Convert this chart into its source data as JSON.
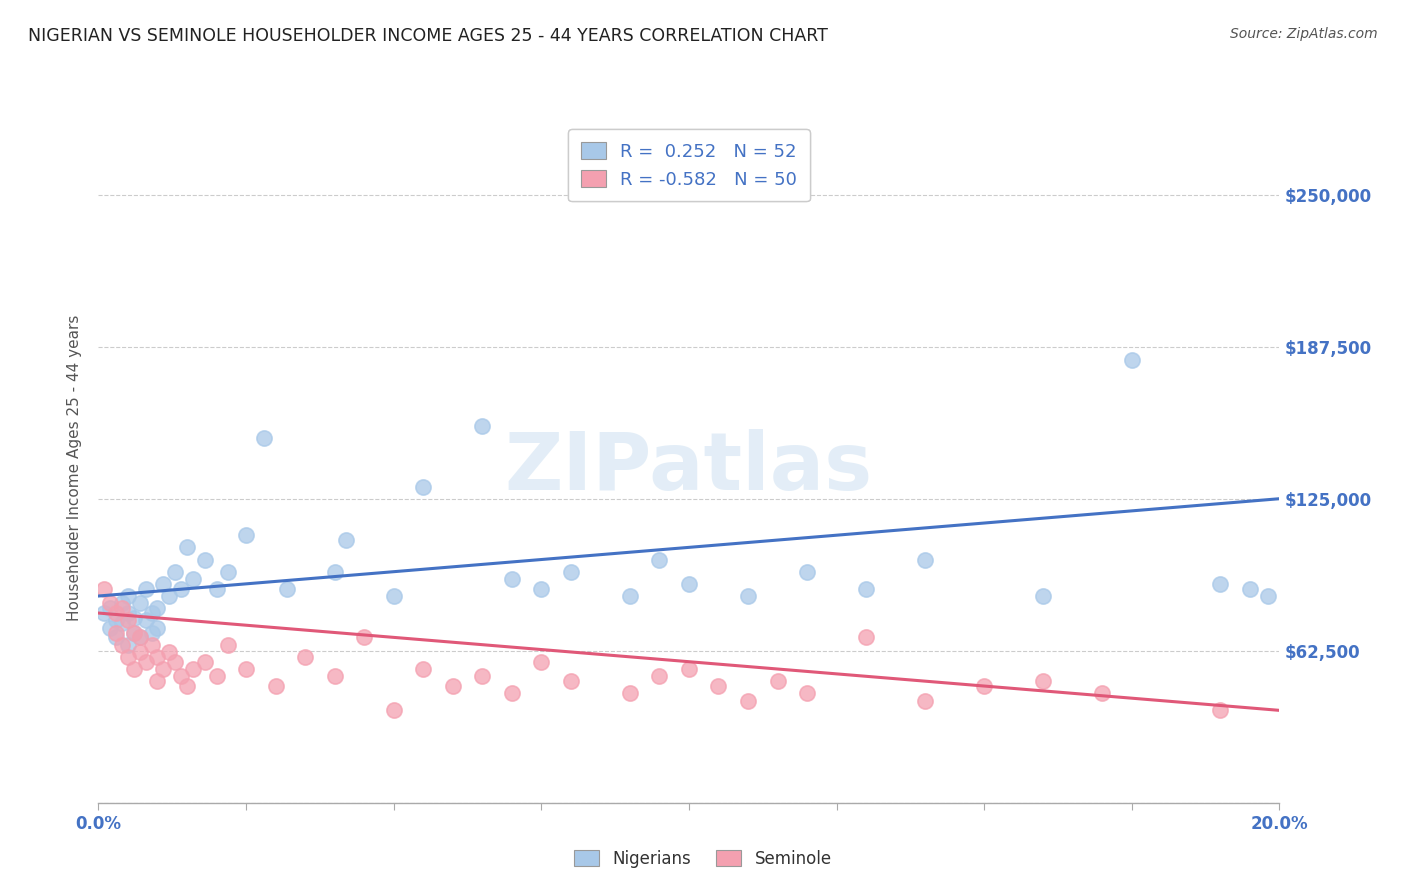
{
  "title": "NIGERIAN VS SEMINOLE HOUSEHOLDER INCOME AGES 25 - 44 YEARS CORRELATION CHART",
  "source": "Source: ZipAtlas.com",
  "ylabel": "Householder Income Ages 25 - 44 years",
  "xlim": [
    0.0,
    0.2
  ],
  "ylim": [
    0,
    275000
  ],
  "yticks": [
    0,
    62500,
    125000,
    187500,
    250000
  ],
  "xticks": [
    0.0,
    0.025,
    0.05,
    0.075,
    0.1,
    0.125,
    0.15,
    0.175,
    0.2
  ],
  "blue_color": "#a8c8e8",
  "pink_color": "#f4a0b0",
  "blue_line_color": "#4472c4",
  "pink_line_color": "#e05878",
  "legend_blue_label": "R =  0.252   N = 52",
  "legend_pink_label": "R = -0.582   N = 50",
  "legend_bottom_blue": "Nigerians",
  "legend_bottom_pink": "Seminole",
  "axis_label_color": "#4472c4",
  "blue_trend_x0": 0.0,
  "blue_trend_x1": 0.2,
  "blue_trend_y0": 85000,
  "blue_trend_y1": 125000,
  "pink_trend_x0": 0.0,
  "pink_trend_x1": 0.2,
  "pink_trend_y0": 78000,
  "pink_trend_y1": 38000,
  "blue_x": [
    0.001,
    0.002,
    0.002,
    0.003,
    0.003,
    0.004,
    0.004,
    0.005,
    0.005,
    0.005,
    0.006,
    0.006,
    0.007,
    0.007,
    0.008,
    0.008,
    0.009,
    0.009,
    0.01,
    0.01,
    0.011,
    0.012,
    0.013,
    0.014,
    0.015,
    0.016,
    0.018,
    0.02,
    0.022,
    0.025,
    0.028,
    0.032,
    0.04,
    0.042,
    0.05,
    0.055,
    0.065,
    0.07,
    0.075,
    0.08,
    0.09,
    0.095,
    0.1,
    0.11,
    0.12,
    0.13,
    0.14,
    0.16,
    0.175,
    0.19,
    0.195,
    0.198
  ],
  "blue_y": [
    78000,
    72000,
    80000,
    75000,
    68000,
    82000,
    74000,
    78000,
    65000,
    85000,
    70000,
    76000,
    82000,
    68000,
    75000,
    88000,
    70000,
    78000,
    72000,
    80000,
    90000,
    85000,
    95000,
    88000,
    105000,
    92000,
    100000,
    88000,
    95000,
    110000,
    150000,
    88000,
    95000,
    108000,
    85000,
    130000,
    155000,
    92000,
    88000,
    95000,
    85000,
    100000,
    90000,
    85000,
    95000,
    88000,
    100000,
    85000,
    182000,
    90000,
    88000,
    85000
  ],
  "pink_x": [
    0.001,
    0.002,
    0.003,
    0.003,
    0.004,
    0.004,
    0.005,
    0.005,
    0.006,
    0.006,
    0.007,
    0.007,
    0.008,
    0.009,
    0.01,
    0.01,
    0.011,
    0.012,
    0.013,
    0.014,
    0.015,
    0.016,
    0.018,
    0.02,
    0.022,
    0.025,
    0.03,
    0.035,
    0.04,
    0.045,
    0.05,
    0.055,
    0.06,
    0.065,
    0.07,
    0.075,
    0.08,
    0.09,
    0.095,
    0.1,
    0.105,
    0.11,
    0.115,
    0.12,
    0.13,
    0.14,
    0.15,
    0.16,
    0.17,
    0.19
  ],
  "pink_y": [
    88000,
    82000,
    78000,
    70000,
    80000,
    65000,
    75000,
    60000,
    70000,
    55000,
    68000,
    62000,
    58000,
    65000,
    60000,
    50000,
    55000,
    62000,
    58000,
    52000,
    48000,
    55000,
    58000,
    52000,
    65000,
    55000,
    48000,
    60000,
    52000,
    68000,
    38000,
    55000,
    48000,
    52000,
    45000,
    58000,
    50000,
    45000,
    52000,
    55000,
    48000,
    42000,
    50000,
    45000,
    68000,
    42000,
    48000,
    50000,
    45000,
    38000
  ]
}
